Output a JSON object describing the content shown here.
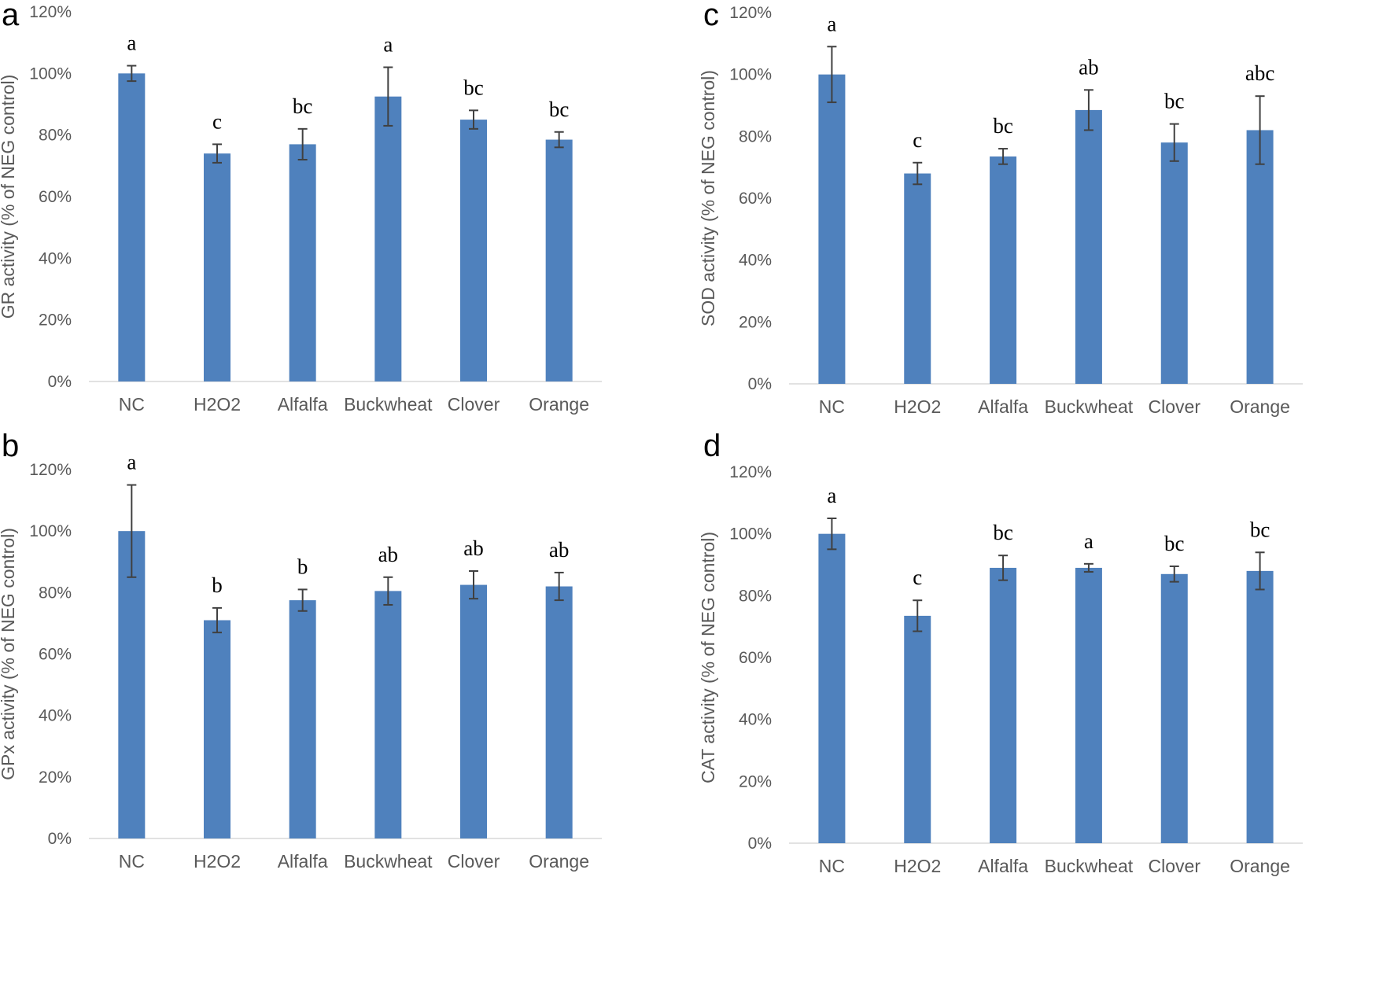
{
  "chart_data": [
    {
      "type": "bar",
      "panel_label": "a",
      "ylabel": "GR activity (% of NEG control)",
      "categories": [
        "NC",
        "H2O2",
        "Alfalfa",
        "Buckwheat",
        "Clover",
        "Orange"
      ],
      "values": [
        100,
        74,
        77,
        92.5,
        85,
        78.5
      ],
      "errors": [
        2.5,
        3,
        5,
        9.5,
        3,
        2.5
      ],
      "significance": [
        "a",
        "c",
        "bc",
        "a",
        "bc",
        "bc"
      ],
      "ylim": [
        0,
        120
      ],
      "yticks": [
        "0%",
        "20%",
        "40%",
        "60%",
        "80%",
        "100%",
        "120%"
      ],
      "grid": false,
      "bar_color": "#4f81bd",
      "error_color": "#404040"
    },
    {
      "type": "bar",
      "panel_label": "b",
      "ylabel": "GPx activity (% of NEG control)",
      "categories": [
        "NC",
        "H2O2",
        "Alfalfa",
        "Buckwheat",
        "Clover",
        "Orange"
      ],
      "values": [
        100,
        71,
        77.5,
        80.5,
        82.5,
        82
      ],
      "errors": [
        15,
        4,
        3.5,
        4.5,
        4.5,
        4.5
      ],
      "significance": [
        "a",
        "b",
        "b",
        "ab",
        "ab",
        "ab"
      ],
      "ylim": [
        0,
        120
      ],
      "yticks": [
        "0%",
        "20%",
        "40%",
        "60%",
        "80%",
        "100%",
        "120%"
      ],
      "grid": false,
      "bar_color": "#4f81bd",
      "error_color": "#404040"
    },
    {
      "type": "bar",
      "panel_label": "c",
      "ylabel": "SOD activity (% of NEG control)",
      "categories": [
        "NC",
        "H2O2",
        "Alfalfa",
        "Buckwheat",
        "Clover",
        "Orange"
      ],
      "values": [
        100,
        68,
        73.5,
        88.5,
        78,
        82
      ],
      "errors": [
        9,
        3.5,
        2.5,
        6.5,
        6,
        11
      ],
      "significance": [
        "a",
        "c",
        "bc",
        "ab",
        "bc",
        "abc"
      ],
      "ylim": [
        0,
        120
      ],
      "yticks": [
        "0%",
        "20%",
        "40%",
        "60%",
        "80%",
        "100%",
        "120%"
      ],
      "grid": false,
      "bar_color": "#4f81bd",
      "error_color": "#404040"
    },
    {
      "type": "bar",
      "panel_label": "d",
      "ylabel": "CAT activity (% of NEG control)",
      "categories": [
        "NC",
        "H2O2",
        "Alfalfa",
        "Buckwheat",
        "Clover",
        "Orange"
      ],
      "values": [
        100,
        73.5,
        89,
        89,
        87,
        88
      ],
      "errors": [
        5,
        5,
        4,
        1.3,
        2.5,
        6
      ],
      "significance": [
        "a",
        "c",
        "bc",
        "a",
        "bc",
        "bc"
      ],
      "ylim": [
        0,
        120
      ],
      "yticks": [
        "0%",
        "20%",
        "40%",
        "60%",
        "80%",
        "100%",
        "120%"
      ],
      "grid": false,
      "bar_color": "#4f81bd",
      "error_color": "#404040"
    }
  ]
}
